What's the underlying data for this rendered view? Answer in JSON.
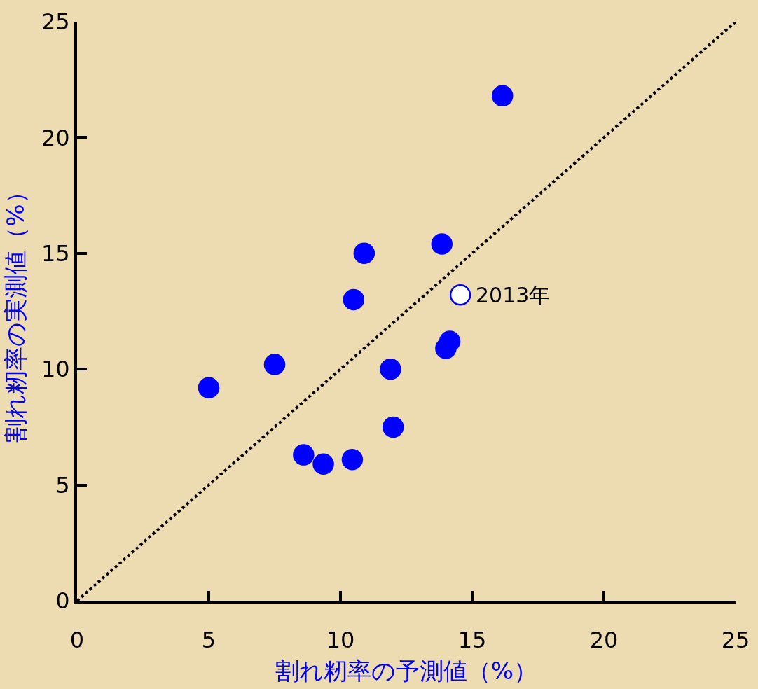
{
  "chart_data": {
    "type": "scatter",
    "xlabel": "割れ籾率の予測値（%）",
    "ylabel": "割れ籾率の実測値（%）",
    "xlim": [
      0,
      25
    ],
    "ylim": [
      0,
      25
    ],
    "xticks": [
      0,
      5,
      10,
      15,
      20,
      25
    ],
    "yticks": [
      0,
      5,
      10,
      15,
      20,
      25
    ],
    "grid": false,
    "marker": "circle",
    "series": [
      {
        "color": "#0000ff",
        "x": [
          5.0,
          7.5,
          8.6,
          9.35,
          10.45,
          10.5,
          10.9,
          11.9,
          12.0,
          13.85,
          14.0,
          14.15,
          16.15
        ],
        "values": [
          9.2,
          10.2,
          6.3,
          5.9,
          6.1,
          13.0,
          15.0,
          10.0,
          7.5,
          15.4,
          10.9,
          11.2,
          21.8
        ]
      },
      {
        "color": "#ffffff",
        "x": [
          14.55
        ],
        "values": [
          13.2
        ]
      },
      {
        "type": "line",
        "color": "#000000",
        "line_style": "dotted",
        "marker": "none",
        "x": [
          0,
          25
        ],
        "values": [
          0,
          25
        ]
      }
    ],
    "annotations": [
      {
        "text": "2013年",
        "x": 14.55,
        "y": 13.2
      }
    ]
  }
}
